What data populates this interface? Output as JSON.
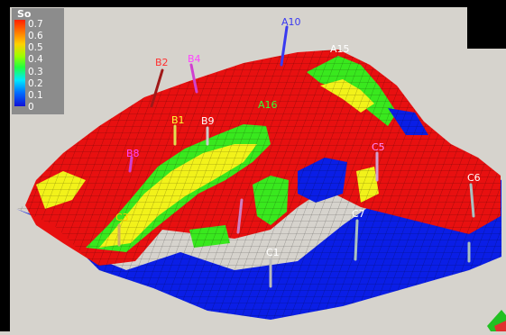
{
  "legend": {
    "title": "So",
    "ticks": [
      "0.7",
      "0.6",
      "0.5",
      "0.4",
      "0.3",
      "0.2",
      "0.1",
      "0"
    ]
  },
  "wells": [
    {
      "name": "A10",
      "color": "#3a3af0"
    },
    {
      "name": "A15",
      "color": "#ffffff"
    },
    {
      "name": "B2",
      "color": "#ff3030"
    },
    {
      "name": "B4",
      "color": "#ff44ff"
    },
    {
      "name": "B1",
      "color": "#ffff33"
    },
    {
      "name": "B9",
      "color": "#ffffff"
    },
    {
      "name": "A16",
      "color": "#33ff33"
    },
    {
      "name": "B8",
      "color": "#ff44ff"
    },
    {
      "name": "C5",
      "color": "#ff88ff"
    },
    {
      "name": "C6",
      "color": "#ffffff"
    },
    {
      "name": "C7",
      "color": "#ffffff"
    },
    {
      "name": "C3",
      "color": "#ffcc00"
    },
    {
      "name": "C1",
      "color": "#ffffff"
    }
  ],
  "colors": {
    "red": "#e81010",
    "blue": "#0a1ee6",
    "green": "#39e81e",
    "yellow": "#f2f21a"
  }
}
